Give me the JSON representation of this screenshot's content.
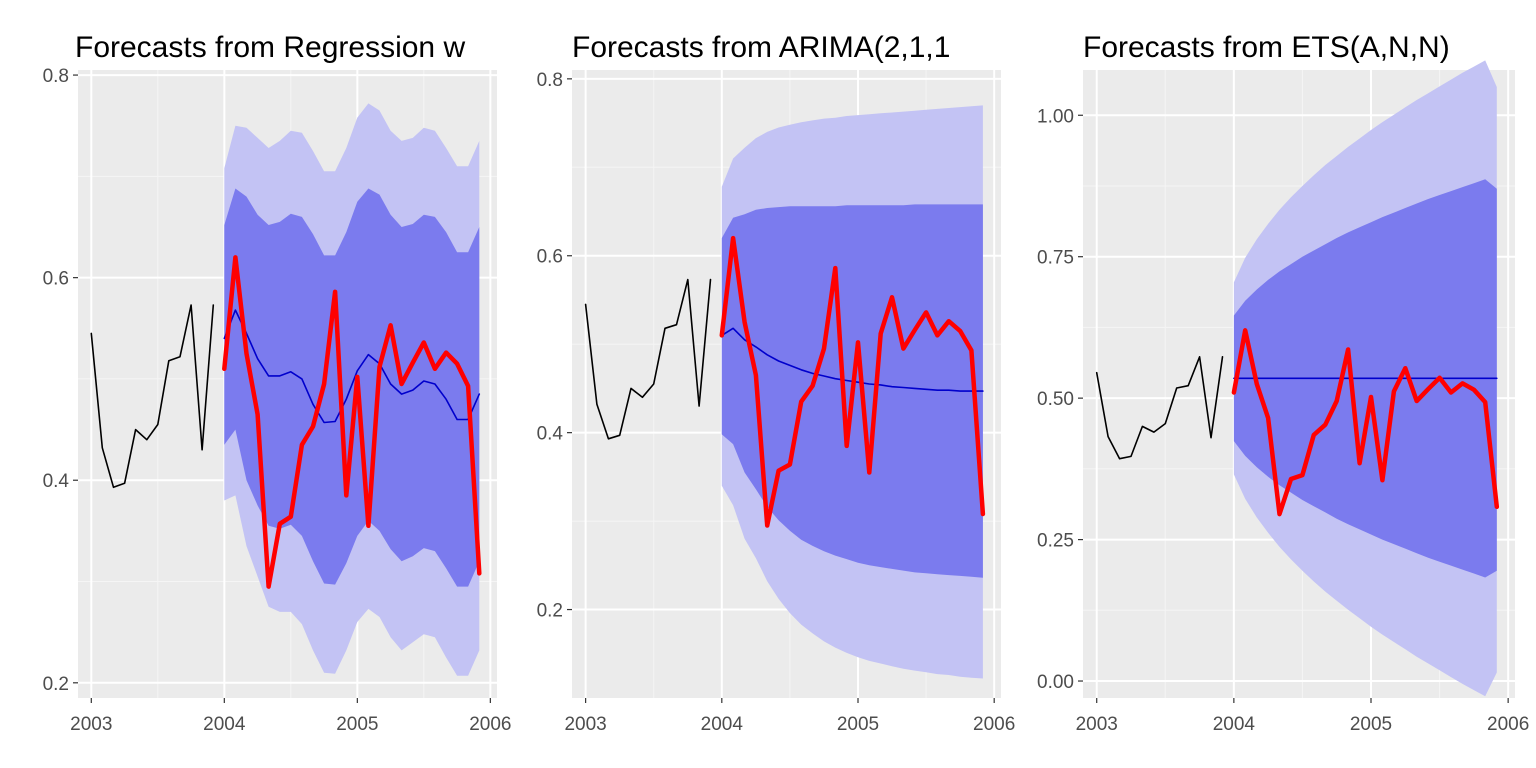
{
  "chart_data": [
    {
      "type": "line",
      "title": "Forecasts from Regression w",
      "xlabel": "",
      "ylabel": "",
      "xlim": [
        2002.9,
        2006.05
      ],
      "ylim": [
        0.185,
        0.805
      ],
      "x_ticks": [
        2003,
        2004,
        2005,
        2006
      ],
      "x_tick_labels": [
        "2003",
        "2004",
        "2005",
        "2006"
      ],
      "y_ticks": [
        0.2,
        0.4,
        0.6,
        0.8
      ],
      "y_tick_labels": [
        "0.2",
        "0.4",
        "0.6",
        "0.8"
      ],
      "grid": true,
      "series": [
        {
          "role": "observed",
          "color": "#000000",
          "x": [
            2003.0,
            2003.083,
            2003.167,
            2003.25,
            2003.333,
            2003.417,
            2003.5,
            2003.583,
            2003.667,
            2003.75,
            2003.833,
            2003.917
          ],
          "values": [
            0.545,
            0.432,
            0.393,
            0.397,
            0.45,
            0.44,
            0.455,
            0.518,
            0.522,
            0.573,
            0.43,
            0.573
          ]
        },
        {
          "role": "point-forecast",
          "color": "#0000cc",
          "x": [
            2004.0,
            2004.083,
            2004.167,
            2004.25,
            2004.333,
            2004.417,
            2004.5,
            2004.583,
            2004.667,
            2004.75,
            2004.833,
            2004.917,
            2005.0,
            2005.083,
            2005.167,
            2005.25,
            2005.333,
            2005.417,
            2005.5,
            2005.583,
            2005.667,
            2005.75,
            2005.833,
            2005.917
          ],
          "values": [
            0.54,
            0.568,
            0.545,
            0.52,
            0.503,
            0.503,
            0.507,
            0.5,
            0.475,
            0.457,
            0.458,
            0.48,
            0.508,
            0.524,
            0.515,
            0.495,
            0.485,
            0.489,
            0.498,
            0.495,
            0.48,
            0.46,
            0.46,
            0.485
          ]
        },
        {
          "role": "test-data",
          "color": "#ff0000",
          "x": [
            2004.0,
            2004.083,
            2004.167,
            2004.25,
            2004.333,
            2004.417,
            2004.5,
            2004.583,
            2004.667,
            2004.75,
            2004.833,
            2004.917,
            2005.0,
            2005.083,
            2005.167,
            2005.25,
            2005.333,
            2005.417,
            2005.5,
            2005.583,
            2005.667,
            2005.75,
            2005.833,
            2005.917
          ],
          "values": [
            0.51,
            0.62,
            0.525,
            0.465,
            0.295,
            0.357,
            0.364,
            0.435,
            0.453,
            0.495,
            0.586,
            0.385,
            0.502,
            0.355,
            0.512,
            0.553,
            0.495,
            0.516,
            0.536,
            0.51,
            0.526,
            0.515,
            0.493,
            0.308
          ]
        }
      ],
      "bands": [
        {
          "level": "95%",
          "color": "#c3c3f4",
          "x": [
            2004.0,
            2004.083,
            2004.167,
            2004.25,
            2004.333,
            2004.417,
            2004.5,
            2004.583,
            2004.667,
            2004.75,
            2004.833,
            2004.917,
            2005.0,
            2005.083,
            2005.167,
            2005.25,
            2005.333,
            2005.417,
            2005.5,
            2005.583,
            2005.667,
            2005.75,
            2005.833,
            2005.917
          ],
          "lower": [
            0.38,
            0.385,
            0.335,
            0.305,
            0.275,
            0.27,
            0.27,
            0.258,
            0.232,
            0.21,
            0.209,
            0.232,
            0.26,
            0.273,
            0.265,
            0.245,
            0.232,
            0.24,
            0.248,
            0.245,
            0.225,
            0.207,
            0.207,
            0.232
          ],
          "upper": [
            0.708,
            0.75,
            0.748,
            0.738,
            0.728,
            0.735,
            0.745,
            0.743,
            0.725,
            0.705,
            0.705,
            0.728,
            0.758,
            0.772,
            0.765,
            0.745,
            0.735,
            0.738,
            0.748,
            0.745,
            0.728,
            0.71,
            0.71,
            0.735
          ]
        },
        {
          "level": "80%",
          "color": "#7b7bee",
          "x": [
            2004.0,
            2004.083,
            2004.167,
            2004.25,
            2004.333,
            2004.417,
            2004.5,
            2004.583,
            2004.667,
            2004.75,
            2004.833,
            2004.917,
            2005.0,
            2005.083,
            2005.167,
            2005.25,
            2005.333,
            2005.417,
            2005.5,
            2005.583,
            2005.667,
            2005.75,
            2005.833,
            2005.917
          ],
          "lower": [
            0.435,
            0.45,
            0.4,
            0.375,
            0.355,
            0.352,
            0.356,
            0.345,
            0.32,
            0.298,
            0.297,
            0.318,
            0.345,
            0.36,
            0.35,
            0.332,
            0.32,
            0.325,
            0.333,
            0.33,
            0.313,
            0.295,
            0.295,
            0.32
          ],
          "upper": [
            0.652,
            0.688,
            0.68,
            0.662,
            0.652,
            0.655,
            0.663,
            0.66,
            0.643,
            0.622,
            0.622,
            0.645,
            0.675,
            0.688,
            0.682,
            0.662,
            0.65,
            0.653,
            0.662,
            0.66,
            0.645,
            0.625,
            0.625,
            0.65
          ]
        }
      ]
    },
    {
      "type": "line",
      "title": "Forecasts from ARIMA(2,1,1",
      "xlabel": "",
      "ylabel": "",
      "xlim": [
        2002.9,
        2006.05
      ],
      "ylim": [
        0.1,
        0.81
      ],
      "x_ticks": [
        2003,
        2004,
        2005,
        2006
      ],
      "x_tick_labels": [
        "2003",
        "2004",
        "2005",
        "2006"
      ],
      "y_ticks": [
        0.2,
        0.4,
        0.6,
        0.8
      ],
      "y_tick_labels": [
        "0.2",
        "0.4",
        "0.6",
        "0.8"
      ],
      "grid": true,
      "series": [
        {
          "role": "observed",
          "color": "#000000",
          "x": [
            2003.0,
            2003.083,
            2003.167,
            2003.25,
            2003.333,
            2003.417,
            2003.5,
            2003.583,
            2003.667,
            2003.75,
            2003.833,
            2003.917
          ],
          "values": [
            0.545,
            0.432,
            0.393,
            0.397,
            0.45,
            0.44,
            0.455,
            0.518,
            0.522,
            0.573,
            0.43,
            0.573
          ]
        },
        {
          "role": "point-forecast",
          "color": "#0000cc",
          "x": [
            2004.0,
            2004.083,
            2004.167,
            2004.25,
            2004.333,
            2004.417,
            2004.5,
            2004.583,
            2004.667,
            2004.75,
            2004.833,
            2004.917,
            2005.0,
            2005.083,
            2005.167,
            2005.25,
            2005.333,
            2005.417,
            2005.5,
            2005.583,
            2005.667,
            2005.75,
            2005.833,
            2005.917
          ],
          "values": [
            0.51,
            0.518,
            0.505,
            0.497,
            0.488,
            0.481,
            0.476,
            0.471,
            0.467,
            0.464,
            0.461,
            0.459,
            0.457,
            0.455,
            0.454,
            0.452,
            0.451,
            0.45,
            0.449,
            0.448,
            0.448,
            0.447,
            0.447,
            0.447
          ]
        },
        {
          "role": "test-data",
          "color": "#ff0000",
          "x": [
            2004.0,
            2004.083,
            2004.167,
            2004.25,
            2004.333,
            2004.417,
            2004.5,
            2004.583,
            2004.667,
            2004.75,
            2004.833,
            2004.917,
            2005.0,
            2005.083,
            2005.167,
            2005.25,
            2005.333,
            2005.417,
            2005.5,
            2005.583,
            2005.667,
            2005.75,
            2005.833,
            2005.917
          ],
          "values": [
            0.51,
            0.62,
            0.525,
            0.465,
            0.295,
            0.357,
            0.364,
            0.435,
            0.453,
            0.495,
            0.586,
            0.385,
            0.502,
            0.355,
            0.512,
            0.553,
            0.495,
            0.516,
            0.536,
            0.51,
            0.526,
            0.515,
            0.493,
            0.308
          ]
        }
      ],
      "bands": [
        {
          "level": "95%",
          "color": "#c3c3f4",
          "x": [
            2004.0,
            2004.083,
            2004.167,
            2004.25,
            2004.333,
            2004.417,
            2004.5,
            2004.583,
            2004.667,
            2004.75,
            2004.833,
            2004.917,
            2005.0,
            2005.083,
            2005.167,
            2005.25,
            2005.333,
            2005.417,
            2005.5,
            2005.583,
            2005.667,
            2005.75,
            2005.833,
            2005.917
          ],
          "lower": [
            0.34,
            0.318,
            0.28,
            0.258,
            0.232,
            0.212,
            0.196,
            0.183,
            0.173,
            0.164,
            0.157,
            0.151,
            0.146,
            0.142,
            0.139,
            0.136,
            0.133,
            0.131,
            0.129,
            0.127,
            0.126,
            0.124,
            0.123,
            0.122
          ],
          "upper": [
            0.678,
            0.71,
            0.722,
            0.733,
            0.74,
            0.745,
            0.748,
            0.751,
            0.753,
            0.755,
            0.756,
            0.758,
            0.759,
            0.76,
            0.761,
            0.762,
            0.763,
            0.764,
            0.765,
            0.766,
            0.767,
            0.768,
            0.769,
            0.77
          ]
        },
        {
          "level": "80%",
          "color": "#7b7bee",
          "x": [
            2004.0,
            2004.083,
            2004.167,
            2004.25,
            2004.333,
            2004.417,
            2004.5,
            2004.583,
            2004.667,
            2004.75,
            2004.833,
            2004.917,
            2005.0,
            2005.083,
            2005.167,
            2005.25,
            2005.333,
            2005.417,
            2005.5,
            2005.583,
            2005.667,
            2005.75,
            2005.833,
            2005.917
          ],
          "lower": [
            0.398,
            0.387,
            0.355,
            0.336,
            0.316,
            0.301,
            0.289,
            0.279,
            0.272,
            0.266,
            0.261,
            0.257,
            0.253,
            0.25,
            0.248,
            0.246,
            0.244,
            0.242,
            0.241,
            0.24,
            0.239,
            0.238,
            0.237,
            0.236
          ],
          "upper": [
            0.62,
            0.643,
            0.647,
            0.652,
            0.654,
            0.655,
            0.656,
            0.656,
            0.656,
            0.656,
            0.656,
            0.657,
            0.657,
            0.657,
            0.657,
            0.657,
            0.657,
            0.658,
            0.658,
            0.658,
            0.658,
            0.658,
            0.658,
            0.658
          ]
        }
      ]
    },
    {
      "type": "line",
      "title": "Forecasts from ETS(A,N,N)",
      "xlabel": "",
      "ylabel": "",
      "xlim": [
        2002.9,
        2006.05
      ],
      "ylim": [
        -0.03,
        1.08
      ],
      "x_ticks": [
        2003,
        2004,
        2005,
        2006
      ],
      "x_tick_labels": [
        "2003",
        "2004",
        "2005",
        "2006"
      ],
      "y_ticks": [
        0.0,
        0.25,
        0.5,
        0.75,
        1.0
      ],
      "y_tick_labels": [
        "0.00",
        "0.25",
        "0.50",
        "0.75",
        "1.00"
      ],
      "grid": true,
      "series": [
        {
          "role": "observed",
          "color": "#000000",
          "x": [
            2003.0,
            2003.083,
            2003.167,
            2003.25,
            2003.333,
            2003.417,
            2003.5,
            2003.583,
            2003.667,
            2003.75,
            2003.833,
            2003.917
          ],
          "values": [
            0.545,
            0.432,
            0.393,
            0.397,
            0.45,
            0.44,
            0.455,
            0.518,
            0.522,
            0.573,
            0.43,
            0.573
          ]
        },
        {
          "role": "point-forecast",
          "color": "#0000cc",
          "x": [
            2004.0,
            2005.917
          ],
          "values": [
            0.535,
            0.535
          ]
        },
        {
          "role": "test-data",
          "color": "#ff0000",
          "x": [
            2004.0,
            2004.083,
            2004.167,
            2004.25,
            2004.333,
            2004.417,
            2004.5,
            2004.583,
            2004.667,
            2004.75,
            2004.833,
            2004.917,
            2005.0,
            2005.083,
            2005.167,
            2005.25,
            2005.333,
            2005.417,
            2005.5,
            2005.583,
            2005.667,
            2005.75,
            2005.833,
            2005.917
          ],
          "values": [
            0.51,
            0.62,
            0.525,
            0.465,
            0.295,
            0.357,
            0.364,
            0.435,
            0.453,
            0.495,
            0.586,
            0.385,
            0.502,
            0.355,
            0.512,
            0.553,
            0.495,
            0.516,
            0.536,
            0.51,
            0.526,
            0.515,
            0.493,
            0.308
          ]
        }
      ],
      "bands": [
        {
          "level": "95%",
          "color": "#c3c3f4",
          "x": [
            2004.0,
            2004.083,
            2004.167,
            2004.25,
            2004.333,
            2004.417,
            2004.5,
            2004.583,
            2004.667,
            2004.75,
            2004.833,
            2004.917,
            2005.0,
            2005.083,
            2005.167,
            2005.25,
            2005.333,
            2005.417,
            2005.5,
            2005.583,
            2005.667,
            2005.75,
            2005.833,
            2005.917
          ],
          "lower": [
            0.365,
            0.322,
            0.289,
            0.262,
            0.237,
            0.215,
            0.195,
            0.176,
            0.158,
            0.142,
            0.126,
            0.111,
            0.096,
            0.082,
            0.069,
            0.056,
            0.043,
            0.031,
            0.019,
            0.007,
            -0.005,
            -0.016,
            -0.027,
            0.015
          ],
          "upper": [
            0.705,
            0.748,
            0.781,
            0.808,
            0.833,
            0.855,
            0.875,
            0.894,
            0.912,
            0.928,
            0.944,
            0.959,
            0.974,
            0.988,
            1.001,
            1.014,
            1.027,
            1.039,
            1.051,
            1.063,
            1.075,
            1.086,
            1.097,
            1.05
          ]
        },
        {
          "level": "80%",
          "color": "#7b7bee",
          "x": [
            2004.0,
            2004.083,
            2004.167,
            2004.25,
            2004.333,
            2004.417,
            2004.5,
            2004.583,
            2004.667,
            2004.75,
            2004.833,
            2004.917,
            2005.0,
            2005.083,
            2005.167,
            2005.25,
            2005.333,
            2005.417,
            2005.5,
            2005.583,
            2005.667,
            2005.75,
            2005.833,
            2005.917
          ],
          "lower": [
            0.424,
            0.398,
            0.378,
            0.361,
            0.346,
            0.333,
            0.32,
            0.309,
            0.298,
            0.287,
            0.277,
            0.268,
            0.259,
            0.25,
            0.242,
            0.234,
            0.226,
            0.218,
            0.211,
            0.204,
            0.197,
            0.19,
            0.183,
            0.195
          ],
          "upper": [
            0.646,
            0.672,
            0.692,
            0.709,
            0.724,
            0.737,
            0.75,
            0.761,
            0.772,
            0.783,
            0.793,
            0.802,
            0.811,
            0.82,
            0.828,
            0.836,
            0.844,
            0.852,
            0.859,
            0.866,
            0.873,
            0.88,
            0.887,
            0.87
          ]
        }
      ]
    }
  ]
}
